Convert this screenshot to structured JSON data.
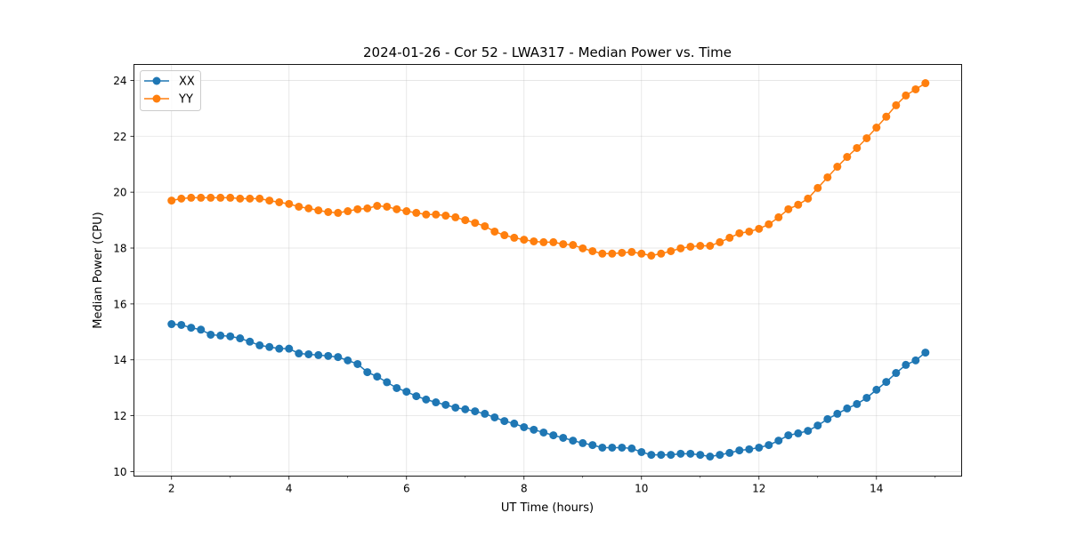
{
  "chart_data": {
    "type": "line",
    "title": "2024-01-26 - Cor 52 - LWA317 - Median Power vs. Time",
    "xlabel": "UT Time (hours)",
    "ylabel": "Median Power (CPU)",
    "xlim": [
      1.36,
      15.45
    ],
    "ylim": [
      9.84,
      24.57
    ],
    "xticks": [
      2,
      4,
      6,
      8,
      10,
      12,
      14
    ],
    "xtick_labels": [
      "2",
      "4",
      "6",
      "8",
      "10",
      "12",
      "14"
    ],
    "yticks": [
      10,
      12,
      14,
      16,
      18,
      20,
      22,
      24
    ],
    "ytick_labels": [
      "10",
      "12",
      "14",
      "16",
      "18",
      "20",
      "22",
      "24"
    ],
    "grid": true,
    "legend": "top-left",
    "x_start": 2,
    "x_step_hours": 0.16667,
    "series": [
      {
        "name": "XX",
        "color": "#1f77b4",
        "values": [
          15.28,
          15.25,
          15.15,
          15.08,
          14.9,
          14.87,
          14.84,
          14.77,
          14.65,
          14.52,
          14.46,
          14.4,
          14.4,
          14.23,
          14.2,
          14.17,
          14.14,
          14.1,
          13.98,
          13.85,
          13.56,
          13.4,
          13.2,
          12.99,
          12.86,
          12.7,
          12.58,
          12.48,
          12.39,
          12.29,
          12.23,
          12.16,
          12.07,
          11.94,
          11.81,
          11.72,
          11.59,
          11.5,
          11.4,
          11.3,
          11.21,
          11.11,
          11.02,
          10.95,
          10.86,
          10.86,
          10.86,
          10.83,
          10.7,
          10.6,
          10.6,
          10.6,
          10.64,
          10.64,
          10.6,
          10.54,
          10.6,
          10.67,
          10.76,
          10.8,
          10.86,
          10.95,
          11.11,
          11.3,
          11.37,
          11.46,
          11.65,
          11.88,
          12.07,
          12.26,
          12.42,
          12.64,
          12.93,
          13.21,
          13.53,
          13.82,
          13.98,
          14.26
        ]
      },
      {
        "name": "YY",
        "color": "#ff7f0e",
        "values": [
          19.7,
          19.77,
          19.8,
          19.8,
          19.8,
          19.8,
          19.8,
          19.77,
          19.77,
          19.77,
          19.7,
          19.64,
          19.58,
          19.48,
          19.42,
          19.35,
          19.29,
          19.26,
          19.32,
          19.39,
          19.42,
          19.51,
          19.48,
          19.39,
          19.32,
          19.26,
          19.2,
          19.2,
          19.16,
          19.1,
          19.0,
          18.9,
          18.78,
          18.59,
          18.46,
          18.37,
          18.3,
          18.24,
          18.21,
          18.21,
          18.14,
          18.11,
          17.99,
          17.89,
          17.8,
          17.8,
          17.83,
          17.86,
          17.8,
          17.73,
          17.8,
          17.89,
          17.99,
          18.05,
          18.08,
          18.08,
          18.21,
          18.37,
          18.53,
          18.59,
          18.69,
          18.85,
          19.1,
          19.39,
          19.55,
          19.77,
          20.15,
          20.53,
          20.91,
          21.26,
          21.58,
          21.93,
          22.31,
          22.7,
          23.11,
          23.46,
          23.68,
          23.9
        ]
      }
    ]
  }
}
